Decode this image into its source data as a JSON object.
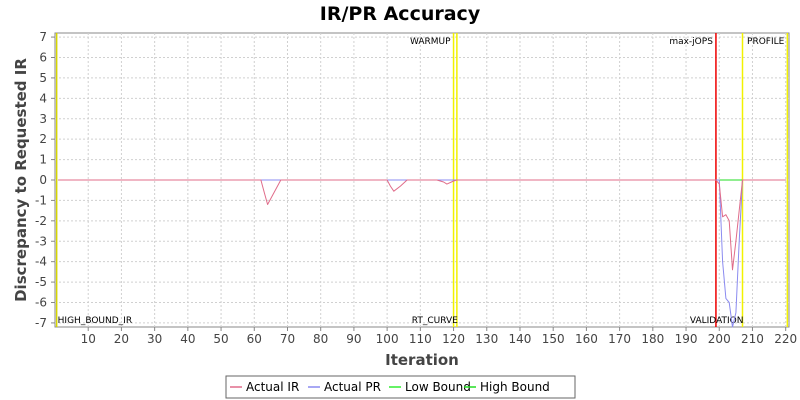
{
  "chart_data": {
    "type": "line",
    "title": "IR/PR Accuracy",
    "xlabel": "Iteration",
    "ylabel": "Discrepancy to Requested IR",
    "xlim": [
      0,
      221
    ],
    "ylim": [
      -7.2,
      7.2
    ],
    "xticks": [
      10,
      20,
      30,
      40,
      50,
      60,
      70,
      80,
      90,
      100,
      110,
      120,
      130,
      140,
      150,
      160,
      170,
      180,
      190,
      200,
      210,
      220
    ],
    "yticks": [
      7,
      6,
      5,
      4,
      3,
      2,
      1,
      0,
      -1,
      -2,
      -3,
      -4,
      -5,
      -6,
      -7
    ],
    "grid": true,
    "legend_position": "bottom",
    "series": [
      {
        "name": "Actual IR",
        "color": "#e06c8a",
        "x": [
          1,
          10,
          20,
          30,
          40,
          50,
          60,
          62,
          63,
          64,
          66,
          68,
          75,
          85,
          95,
          100,
          101,
          102,
          104,
          106,
          110,
          115,
          117,
          118,
          120,
          121,
          130,
          150,
          170,
          190,
          199,
          200,
          201,
          202,
          203,
          204,
          205,
          206,
          207,
          210,
          220
        ],
        "y": [
          0,
          0,
          0,
          0,
          0,
          0,
          0,
          0,
          -0.6,
          -1.2,
          -0.6,
          0,
          0,
          0,
          0,
          0,
          -0.3,
          -0.55,
          -0.3,
          0,
          0,
          0,
          -0.1,
          -0.2,
          -0.05,
          0,
          0,
          0,
          0,
          0,
          0,
          -0.2,
          -1.8,
          -1.7,
          -2.0,
          -4.4,
          -3.0,
          -1.5,
          0,
          0,
          0
        ]
      },
      {
        "name": "Actual PR",
        "color": "#8b8bf0",
        "x": [
          1,
          10,
          20,
          30,
          40,
          50,
          60,
          100,
          110,
          120,
          121,
          130,
          150,
          170,
          190,
          199,
          200,
          201,
          202,
          203,
          204,
          205,
          206,
          207,
          210,
          220
        ],
        "y": [
          0,
          0,
          0,
          0,
          0,
          0,
          0,
          0,
          0,
          0,
          0,
          0,
          0,
          0,
          0,
          0,
          0,
          -4.0,
          -5.8,
          -6.0,
          -7.2,
          -6.5,
          -3.0,
          0,
          0,
          0
        ]
      },
      {
        "name": "Low Bound",
        "color": "#33ee33",
        "x": [
          1,
          120,
          121,
          199,
          200,
          206,
          207,
          220
        ],
        "y": [
          0,
          0,
          0,
          0,
          0,
          0,
          0,
          0
        ]
      },
      {
        "name": "High Bound",
        "color": "#22dd22",
        "x": [
          1,
          120,
          121,
          199,
          200,
          206,
          207,
          220
        ],
        "y": [
          0,
          0,
          0,
          0,
          0,
          0,
          0,
          0
        ]
      }
    ],
    "markers": [
      {
        "x": 0.5,
        "color": "#d6d600",
        "top_label": "",
        "bottom_label": "HIGH_BOUND_IR"
      },
      {
        "x": 120,
        "color": "#f2f200",
        "top_label": "WARMUP",
        "bottom_label": ""
      },
      {
        "x": 121,
        "color": "#f2f200",
        "top_label": "",
        "bottom_label": "RT_CURVE"
      },
      {
        "x": 199,
        "color": "#ee0000",
        "top_label": "max-jOPS",
        "bottom_label": ""
      },
      {
        "x": 207,
        "color": "#f2f200",
        "top_label": "",
        "bottom_label": "VALIDATION"
      },
      {
        "x": 220.5,
        "color": "#f2f200",
        "top_label": "PROFILE",
        "bottom_label": ""
      }
    ]
  }
}
